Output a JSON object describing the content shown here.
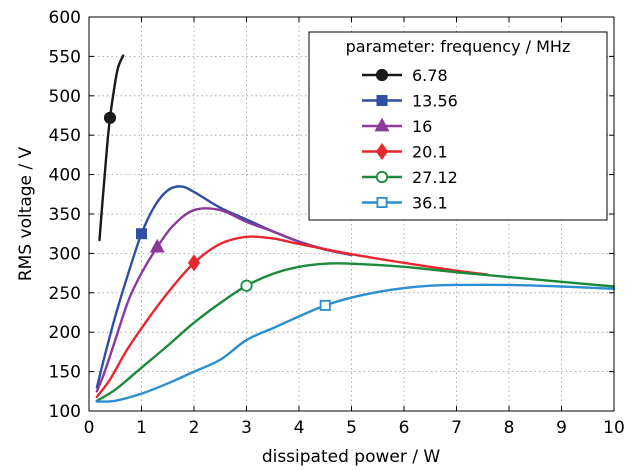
{
  "chart_data": {
    "type": "line",
    "title": "",
    "xlabel": "dissipated power / W",
    "ylabel": "RMS voltage / V",
    "xlim": [
      0,
      10
    ],
    "ylim": [
      100,
      600
    ],
    "xticks": [
      0,
      1,
      2,
      3,
      4,
      5,
      6,
      7,
      8,
      9,
      10
    ],
    "yticks": [
      100,
      150,
      200,
      250,
      300,
      350,
      400,
      450,
      500,
      550,
      600
    ],
    "grid": true,
    "legend_title": "parameter:  frequency  /  MHz",
    "legend_position": "top-right",
    "series": [
      {
        "name": "6.78",
        "color": "#1a1a1a",
        "marker": "circle",
        "filled": true,
        "marker_point": [
          0.4,
          472
        ],
        "points": [
          [
            0.2,
            317
          ],
          [
            0.25,
            360
          ],
          [
            0.3,
            400
          ],
          [
            0.35,
            440
          ],
          [
            0.4,
            472
          ],
          [
            0.47,
            505
          ],
          [
            0.55,
            535
          ],
          [
            0.65,
            551
          ]
        ]
      },
      {
        "name": "13.56",
        "color": "#2e4fa3",
        "marker": "square",
        "filled": true,
        "marker_point": [
          1.0,
          325
        ],
        "points": [
          [
            0.15,
            130
          ],
          [
            0.3,
            170
          ],
          [
            0.5,
            220
          ],
          [
            0.75,
            275
          ],
          [
            1.0,
            325
          ],
          [
            1.25,
            360
          ],
          [
            1.5,
            380
          ],
          [
            1.75,
            385
          ],
          [
            2.0,
            378
          ],
          [
            2.5,
            358
          ],
          [
            3.0,
            343
          ],
          [
            3.5,
            328
          ],
          [
            4.0,
            315
          ],
          [
            4.5,
            305
          ],
          [
            5.0,
            298
          ]
        ]
      },
      {
        "name": "16",
        "color": "#8b3a9c",
        "marker": "triangle",
        "filled": true,
        "marker_point": [
          1.3,
          308
        ],
        "points": [
          [
            0.15,
            125
          ],
          [
            0.3,
            150
          ],
          [
            0.5,
            190
          ],
          [
            0.75,
            240
          ],
          [
            1.0,
            275
          ],
          [
            1.3,
            308
          ],
          [
            1.6,
            335
          ],
          [
            2.0,
            355
          ],
          [
            2.5,
            355
          ],
          [
            3.0,
            340
          ],
          [
            3.5,
            328
          ],
          [
            4.0,
            315
          ],
          [
            4.5,
            305
          ],
          [
            5.0,
            298
          ]
        ]
      },
      {
        "name": "20.1",
        "color": "#e8262e",
        "marker": "diamond",
        "filled": true,
        "marker_point": [
          2.0,
          288
        ],
        "points": [
          [
            0.15,
            118
          ],
          [
            0.4,
            140
          ],
          [
            0.7,
            175
          ],
          [
            1.0,
            205
          ],
          [
            1.5,
            250
          ],
          [
            2.0,
            288
          ],
          [
            2.5,
            312
          ],
          [
            3.0,
            321
          ],
          [
            3.5,
            319
          ],
          [
            4.0,
            312
          ],
          [
            5.0,
            299
          ],
          [
            6.0,
            288
          ],
          [
            7.0,
            278
          ],
          [
            7.6,
            273
          ]
        ]
      },
      {
        "name": "27.12",
        "color": "#1b8a3a",
        "marker": "circle",
        "filled": false,
        "marker_point": [
          3.0,
          259
        ],
        "points": [
          [
            0.15,
            113
          ],
          [
            0.5,
            127
          ],
          [
            1.0,
            155
          ],
          [
            1.5,
            183
          ],
          [
            2.0,
            212
          ],
          [
            2.5,
            237
          ],
          [
            3.0,
            259
          ],
          [
            3.5,
            274
          ],
          [
            4.0,
            283
          ],
          [
            4.5,
            287
          ],
          [
            5.0,
            287
          ],
          [
            6.0,
            283
          ],
          [
            7.0,
            276
          ],
          [
            8.0,
            270
          ],
          [
            9.0,
            264
          ],
          [
            10.0,
            258
          ]
        ]
      },
      {
        "name": "36.1",
        "color": "#2a8ed0",
        "marker": "square",
        "filled": false,
        "marker_point": [
          4.5,
          234
        ],
        "points": [
          [
            0.15,
            112
          ],
          [
            0.5,
            113
          ],
          [
            1.0,
            122
          ],
          [
            1.5,
            135
          ],
          [
            2.0,
            150
          ],
          [
            2.5,
            165
          ],
          [
            3.0,
            190
          ],
          [
            3.5,
            205
          ],
          [
            4.0,
            220
          ],
          [
            4.5,
            234
          ],
          [
            5.0,
            244
          ],
          [
            5.5,
            251
          ],
          [
            6.0,
            256
          ],
          [
            6.5,
            259
          ],
          [
            7.0,
            260
          ],
          [
            8.0,
            260
          ],
          [
            9.0,
            258
          ],
          [
            10.0,
            255
          ]
        ]
      }
    ]
  }
}
